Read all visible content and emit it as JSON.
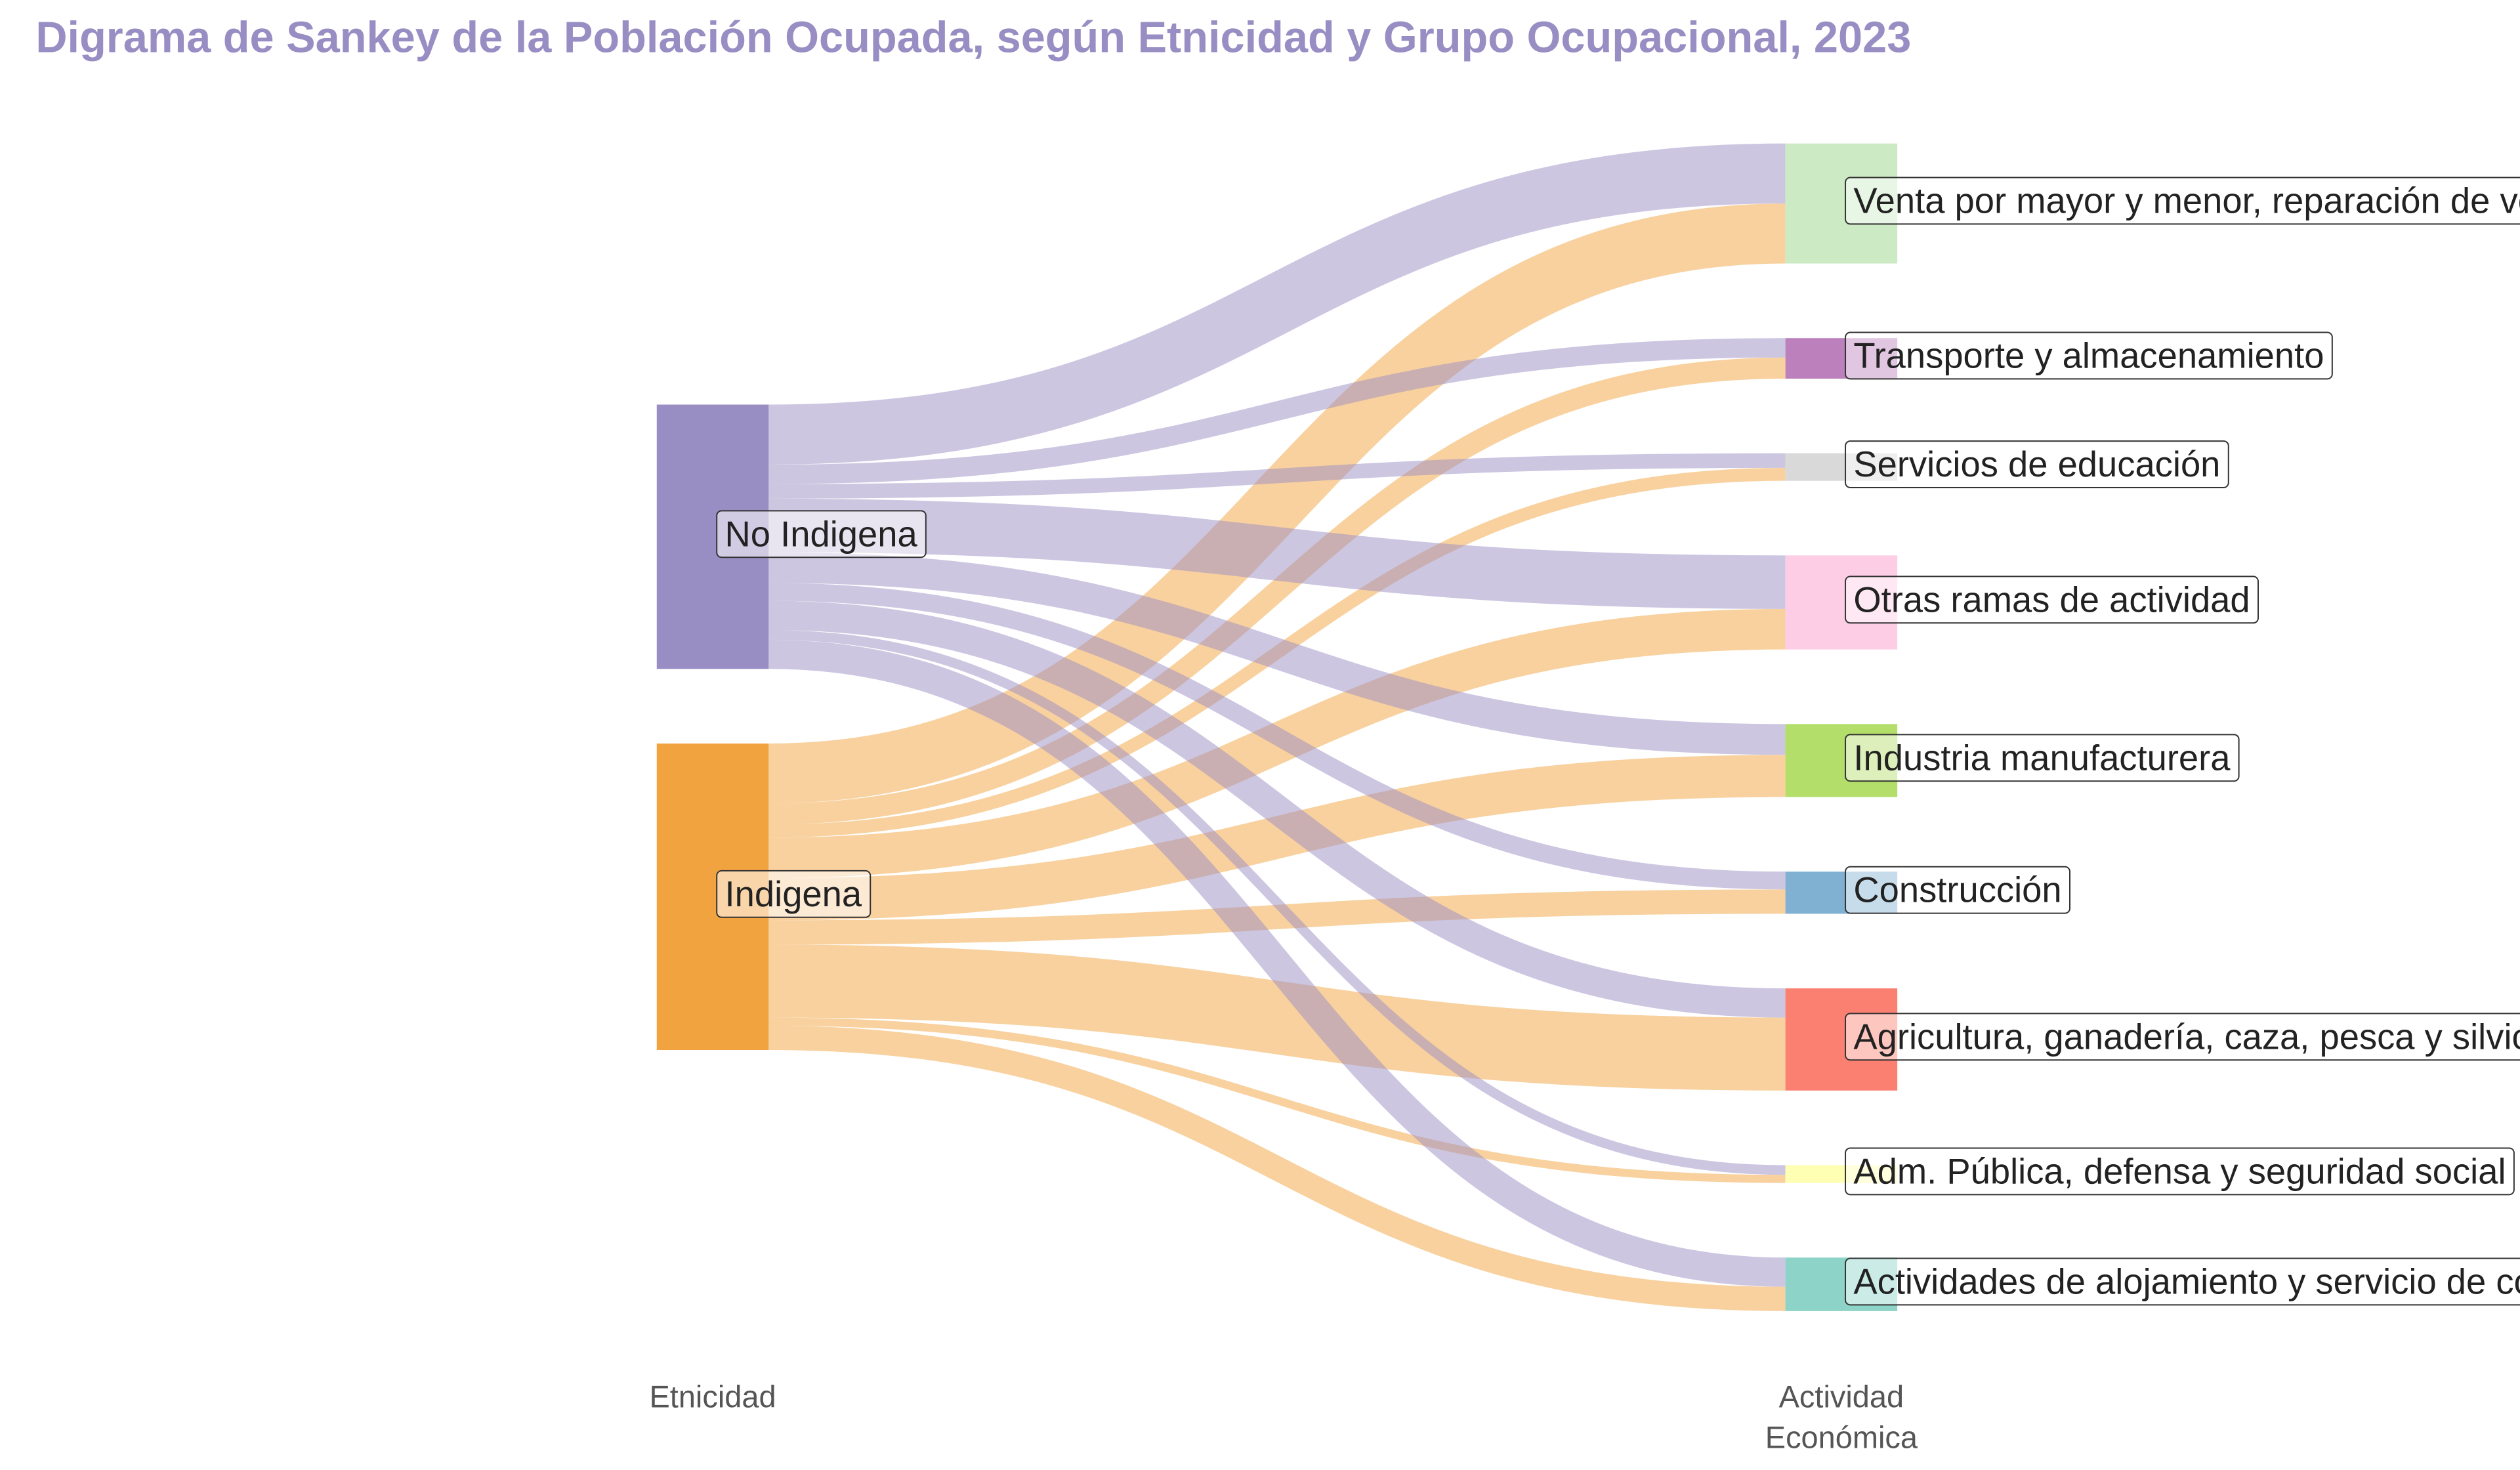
{
  "chart_data": {
    "type": "sankey",
    "title": "Digrama de Sankey de la Población Ocupada, según Etnicidad y Grupo Ocupacional, 2023",
    "column_labels": [
      "Etnicidad",
      "Actividad Económica"
    ],
    "link_opacity": 0.5,
    "nodes": [
      {
        "name": "No Indigena",
        "color": "#998ec3",
        "column": 0
      },
      {
        "name": "Indigena",
        "color": "#f1a340",
        "column": 0
      },
      {
        "name": "Venta por mayor y menor, reparación de vehículos",
        "color": "#ccebc5",
        "column": 1
      },
      {
        "name": "Transporte y almacenamiento",
        "color": "#bc80bd",
        "column": 1
      },
      {
        "name": "Servicios de educación",
        "color": "#d9d9d9",
        "column": 1
      },
      {
        "name": "Otras ramas de actividad",
        "color": "#fccde5",
        "column": 1
      },
      {
        "name": "Industria manufacturera",
        "color": "#b3de69",
        "column": 1
      },
      {
        "name": "Construcción",
        "color": "#80b1d3",
        "column": 1
      },
      {
        "name": "Agricultura, ganadería, caza, pesca y silvicultura",
        "color": "#fb8072",
        "column": 1
      },
      {
        "name": "Adm. Pública, defensa y seguridad social",
        "color": "#ffffb3",
        "column": 1
      },
      {
        "name": "Actividades de alojamiento y servicio de comidas",
        "color": "#8dd3c7",
        "column": 1
      }
    ],
    "links": [
      {
        "source": 0,
        "target": 2,
        "value": 37
      },
      {
        "source": 1,
        "target": 2,
        "value": 37
      },
      {
        "source": 0,
        "target": 3,
        "value": 12
      },
      {
        "source": 1,
        "target": 3,
        "value": 13
      },
      {
        "source": 0,
        "target": 4,
        "value": 9
      },
      {
        "source": 1,
        "target": 4,
        "value": 8
      },
      {
        "source": 0,
        "target": 5,
        "value": 33
      },
      {
        "source": 1,
        "target": 5,
        "value": 25
      },
      {
        "source": 0,
        "target": 6,
        "value": 19
      },
      {
        "source": 1,
        "target": 6,
        "value": 26
      },
      {
        "source": 0,
        "target": 7,
        "value": 11
      },
      {
        "source": 1,
        "target": 7,
        "value": 15
      },
      {
        "source": 0,
        "target": 8,
        "value": 18
      },
      {
        "source": 1,
        "target": 8,
        "value": 45
      },
      {
        "source": 0,
        "target": 9,
        "value": 6
      },
      {
        "source": 1,
        "target": 9,
        "value": 5
      },
      {
        "source": 0,
        "target": 10,
        "value": 18
      },
      {
        "source": 1,
        "target": 10,
        "value": 15
      }
    ]
  }
}
